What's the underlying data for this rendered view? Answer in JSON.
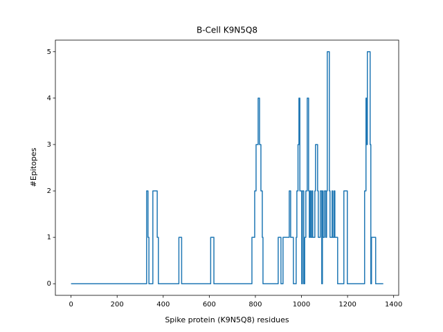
{
  "chart_data": {
    "type": "line",
    "title": "B-Cell K9N5Q8",
    "x_label": "Spike protein (K9N5Q8) residues",
    "y_label": "#Epitopes",
    "xlim": [
      -68,
      1422
    ],
    "ylim": [
      -0.25,
      5.25
    ],
    "xticks": [
      0,
      200,
      400,
      600,
      800,
      1000,
      1200,
      1400
    ],
    "yticks": [
      0,
      1,
      2,
      3,
      4,
      5
    ],
    "series": [
      {
        "color": "#1f77b4",
        "x": [
          0,
          328,
          328,
          334,
          334,
          338,
          338,
          355,
          355,
          374,
          374,
          379,
          379,
          468,
          468,
          480,
          480,
          606,
          606,
          620,
          620,
          785,
          785,
          797,
          797,
          803,
          803,
          812,
          812,
          818,
          818,
          824,
          824,
          830,
          830,
          833,
          833,
          899,
          899,
          911,
          911,
          920,
          920,
          947,
          947,
          953,
          953,
          965,
          965,
          977,
          977,
          980,
          980,
          985,
          985,
          989,
          989,
          993,
          993,
          1001,
          1001,
          1004,
          1004,
          1010,
          1010,
          1014,
          1014,
          1019,
          1019,
          1025,
          1025,
          1031,
          1031,
          1034,
          1034,
          1037,
          1037,
          1041,
          1041,
          1046,
          1046,
          1049,
          1049,
          1058,
          1058,
          1061,
          1061,
          1070,
          1070,
          1073,
          1073,
          1082,
          1082,
          1088,
          1088,
          1091,
          1091,
          1094,
          1094,
          1100,
          1100,
          1106,
          1106,
          1109,
          1109,
          1112,
          1112,
          1121,
          1121,
          1124,
          1124,
          1133,
          1133,
          1136,
          1136,
          1142,
          1142,
          1145,
          1145,
          1157,
          1157,
          1184,
          1184,
          1199,
          1199,
          1274,
          1274,
          1280,
          1280,
          1283,
          1283,
          1286,
          1286,
          1298,
          1298,
          1301,
          1301,
          1304,
          1304,
          1322,
          1322,
          1355
        ],
        "values": [
          0,
          0,
          2,
          2,
          1,
          1,
          0,
          0,
          2,
          2,
          1,
          1,
          0,
          0,
          1,
          1,
          0,
          0,
          1,
          1,
          0,
          0,
          1,
          1,
          2,
          2,
          3,
          3,
          4,
          4,
          3,
          3,
          2,
          2,
          1,
          1,
          0,
          0,
          1,
          1,
          0,
          0,
          1,
          1,
          2,
          2,
          1,
          1,
          0,
          0,
          1,
          1,
          2,
          2,
          3,
          3,
          4,
          4,
          2,
          2,
          0,
          0,
          2,
          2,
          0,
          0,
          1,
          1,
          2,
          2,
          4,
          4,
          2,
          2,
          1,
          1,
          2,
          2,
          1,
          1,
          2,
          2,
          1,
          1,
          2,
          2,
          3,
          3,
          2,
          2,
          1,
          1,
          2,
          2,
          0,
          0,
          2,
          2,
          1,
          1,
          2,
          2,
          1,
          1,
          2,
          2,
          5,
          5,
          2,
          2,
          1,
          1,
          2,
          2,
          1,
          1,
          2,
          2,
          1,
          1,
          0,
          0,
          2,
          2,
          0,
          0,
          2,
          2,
          4,
          4,
          3,
          3,
          5,
          5,
          3,
          3,
          0,
          0,
          1,
          1,
          0,
          0
        ]
      }
    ]
  }
}
